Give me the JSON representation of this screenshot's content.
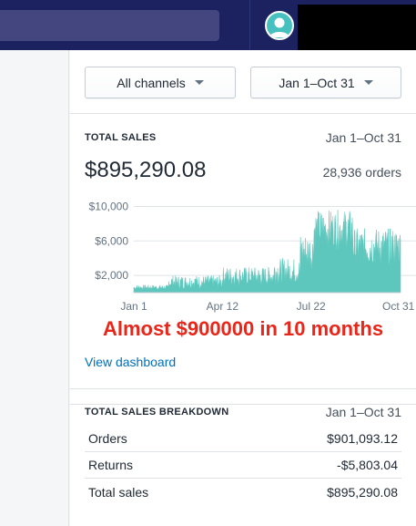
{
  "header": {
    "search_placeholder": "",
    "avatar_icon": "user-avatar-icon"
  },
  "filters": {
    "channel_label": "All channels",
    "date_range_label": "Jan 1–Oct 31"
  },
  "total_sales": {
    "title": "TOTAL SALES",
    "date_range": "Jan 1–Oct 31",
    "amount": "$895,290.08",
    "orders": "28,936 orders"
  },
  "chart_data": {
    "type": "area",
    "y_ticks": [
      "$10,000",
      "$6,000",
      "$2,000"
    ],
    "x_ticks": [
      "Jan 1",
      "Apr 12",
      "Jul 22",
      "Oct 31"
    ],
    "ylim": [
      0,
      11000
    ],
    "color": "#5ec7bd",
    "grid": true,
    "segments": [
      {
        "from_day": 0,
        "to_day": 40,
        "min": 300,
        "max": 900
      },
      {
        "from_day": 40,
        "to_day": 101,
        "min": 400,
        "max": 2000
      },
      {
        "from_day": 101,
        "to_day": 160,
        "min": 700,
        "max": 3000
      },
      {
        "from_day": 160,
        "to_day": 190,
        "min": 900,
        "max": 4000
      },
      {
        "from_day": 190,
        "to_day": 205,
        "min": 2000,
        "max": 7000
      },
      {
        "from_day": 205,
        "to_day": 250,
        "min": 5000,
        "max": 9600
      },
      {
        "from_day": 250,
        "to_day": 303,
        "min": 3000,
        "max": 7500
      }
    ]
  },
  "annotation": "Almost $900000 in 10 months",
  "view_dashboard_label": "View dashboard",
  "breakdown": {
    "title": "TOTAL SALES BREAKDOWN",
    "date_range": "Jan 1–Oct 31",
    "rows": [
      {
        "label": "Orders",
        "value": "$901,093.12"
      },
      {
        "label": "Returns",
        "value": "-$5,803.04"
      },
      {
        "label": "Total sales",
        "value": "$895,290.08"
      }
    ]
  }
}
